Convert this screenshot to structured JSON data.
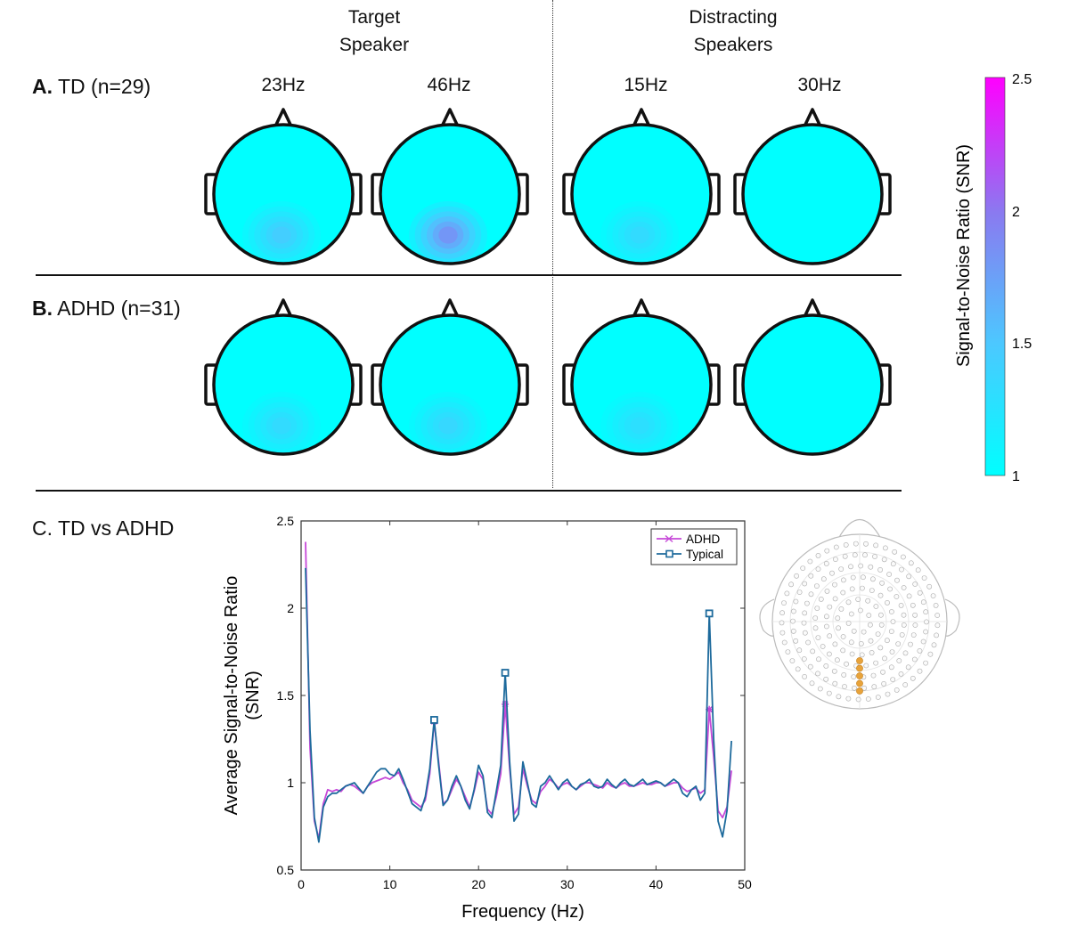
{
  "headers": {
    "target_line1": "Target",
    "target_line2": "Speaker",
    "distract_line1": "Distracting",
    "distract_line2": "Speakers"
  },
  "frequencies": [
    "23Hz",
    "46Hz",
    "15Hz",
    "30Hz"
  ],
  "panels": {
    "a_letter": "A.",
    "a_text": "TD (n=29)",
    "b_letter": "B.",
    "b_text": "ADHD (n=31)",
    "c_letter": "C.",
    "c_text": "TD vs ADHD"
  },
  "topomaps": {
    "td": [
      0.3,
      0.55,
      0.22,
      0.0
    ],
    "adhd": [
      0.22,
      0.24,
      0.2,
      0.0
    ]
  },
  "colors": {
    "low": "#00ffff",
    "high": "#ff00ff",
    "adhd": "#c648d8",
    "typical": "#1d6a9c",
    "outline": "#111111",
    "electrode_highlight": "#e8a33a"
  },
  "colorbar": {
    "label": "Signal-to-Noise Ratio (SNR)",
    "min": 1,
    "max": 2.5,
    "ticks": [
      "2.5",
      "2",
      "1.5",
      "1"
    ],
    "tick_values": [
      2.5,
      2,
      1.5,
      1
    ]
  },
  "chart_data": {
    "type": "line",
    "xlabel": "Frequency (Hz)",
    "ylabel_line1": "Average Signal-to-Noise Ratio",
    "ylabel_line2": "(SNR)",
    "xlim": [
      0,
      50
    ],
    "ylim": [
      0.5,
      2.5
    ],
    "xticks": [
      0,
      10,
      20,
      30,
      40,
      50
    ],
    "yticks": [
      0.5,
      1,
      1.5,
      2,
      2.5
    ],
    "ytick_labels": [
      "0.5",
      "1",
      "1.5",
      "2",
      "2.5"
    ],
    "legend_position": "top-right",
    "marked_frequencies": [
      15,
      23,
      46
    ],
    "series": [
      {
        "name": "ADHD",
        "x": [
          0.5,
          1,
          1.5,
          2,
          2.5,
          3,
          3.5,
          4,
          4.5,
          5,
          5.5,
          6,
          6.5,
          7,
          7.5,
          8,
          8.5,
          9,
          9.5,
          10,
          10.5,
          11,
          11.5,
          12,
          12.5,
          13,
          13.5,
          14,
          14.5,
          15,
          15.5,
          16,
          16.5,
          17,
          17.5,
          18,
          18.5,
          19,
          19.5,
          20,
          20.5,
          21,
          21.5,
          22,
          22.5,
          23,
          23.5,
          24,
          24.5,
          25,
          25.5,
          26,
          26.5,
          27,
          27.5,
          28,
          28.5,
          29,
          29.5,
          30,
          30.5,
          31,
          31.5,
          32,
          32.5,
          33,
          33.5,
          34,
          34.5,
          35,
          35.5,
          36,
          36.5,
          37,
          37.5,
          38,
          38.5,
          39,
          39.5,
          40,
          40.5,
          41,
          41.5,
          42,
          42.5,
          43,
          43.5,
          44,
          44.5,
          45,
          45.5,
          46,
          46.5,
          47,
          47.5,
          48,
          48.5
        ],
        "values": [
          2.38,
          1.2,
          0.78,
          0.68,
          0.88,
          0.96,
          0.95,
          0.96,
          0.95,
          0.98,
          0.99,
          0.98,
          0.96,
          0.94,
          0.98,
          1.0,
          1.01,
          1.02,
          1.03,
          1.02,
          1.04,
          1.06,
          1.0,
          0.96,
          0.9,
          0.88,
          0.86,
          0.9,
          1.05,
          1.35,
          1.12,
          0.88,
          0.9,
          0.96,
          1.02,
          0.98,
          0.92,
          0.86,
          0.95,
          1.06,
          1.02,
          0.85,
          0.82,
          0.92,
          1.05,
          1.45,
          1.08,
          0.82,
          0.86,
          1.08,
          0.98,
          0.9,
          0.88,
          0.95,
          0.98,
          1.02,
          1.0,
          0.97,
          0.99,
          1.0,
          0.98,
          0.96,
          0.98,
          1.0,
          1.0,
          0.99,
          0.98,
          0.97,
          1.0,
          0.98,
          0.97,
          0.99,
          1.0,
          0.98,
          0.98,
          0.99,
          1.0,
          0.99,
          0.99,
          1.0,
          1.0,
          0.98,
          0.99,
          1.0,
          1.0,
          0.97,
          0.95,
          0.96,
          0.97,
          0.94,
          0.96,
          1.42,
          1.15,
          0.84,
          0.8,
          0.86,
          1.07
        ]
      },
      {
        "name": "Typical",
        "x": [
          0.5,
          1,
          1.5,
          2,
          2.5,
          3,
          3.5,
          4,
          4.5,
          5,
          5.5,
          6,
          6.5,
          7,
          7.5,
          8,
          8.5,
          9,
          9.5,
          10,
          10.5,
          11,
          11.5,
          12,
          12.5,
          13,
          13.5,
          14,
          14.5,
          15,
          15.5,
          16,
          16.5,
          17,
          17.5,
          18,
          18.5,
          19,
          19.5,
          20,
          20.5,
          21,
          21.5,
          22,
          22.5,
          23,
          23.5,
          24,
          24.5,
          25,
          25.5,
          26,
          26.5,
          27,
          27.5,
          28,
          28.5,
          29,
          29.5,
          30,
          30.5,
          31,
          31.5,
          32,
          32.5,
          33,
          33.5,
          34,
          34.5,
          35,
          35.5,
          36,
          36.5,
          37,
          37.5,
          38,
          38.5,
          39,
          39.5,
          40,
          40.5,
          41,
          41.5,
          42,
          42.5,
          43,
          43.5,
          44,
          44.5,
          45,
          45.5,
          46,
          46.5,
          47,
          47.5,
          48,
          48.5
        ],
        "values": [
          2.23,
          1.3,
          0.8,
          0.66,
          0.86,
          0.92,
          0.94,
          0.94,
          0.96,
          0.98,
          0.99,
          1.0,
          0.97,
          0.94,
          0.98,
          1.02,
          1.06,
          1.08,
          1.08,
          1.05,
          1.04,
          1.08,
          1.02,
          0.95,
          0.88,
          0.86,
          0.84,
          0.92,
          1.08,
          1.36,
          1.1,
          0.87,
          0.9,
          0.98,
          1.04,
          0.98,
          0.9,
          0.85,
          0.96,
          1.1,
          1.04,
          0.83,
          0.8,
          0.95,
          1.1,
          1.63,
          1.12,
          0.78,
          0.82,
          1.12,
          1.0,
          0.88,
          0.86,
          0.98,
          1.0,
          1.04,
          1.0,
          0.96,
          1.0,
          1.02,
          0.98,
          0.96,
          0.99,
          1.0,
          1.02,
          0.98,
          0.97,
          0.98,
          1.02,
          0.99,
          0.97,
          1.0,
          1.02,
          0.99,
          0.98,
          1.0,
          1.02,
          0.99,
          1.0,
          1.01,
          1.0,
          0.98,
          1.0,
          1.02,
          1.0,
          0.94,
          0.92,
          0.96,
          0.98,
          0.9,
          0.94,
          1.97,
          1.25,
          0.78,
          0.69,
          0.84,
          1.24
        ]
      }
    ]
  }
}
